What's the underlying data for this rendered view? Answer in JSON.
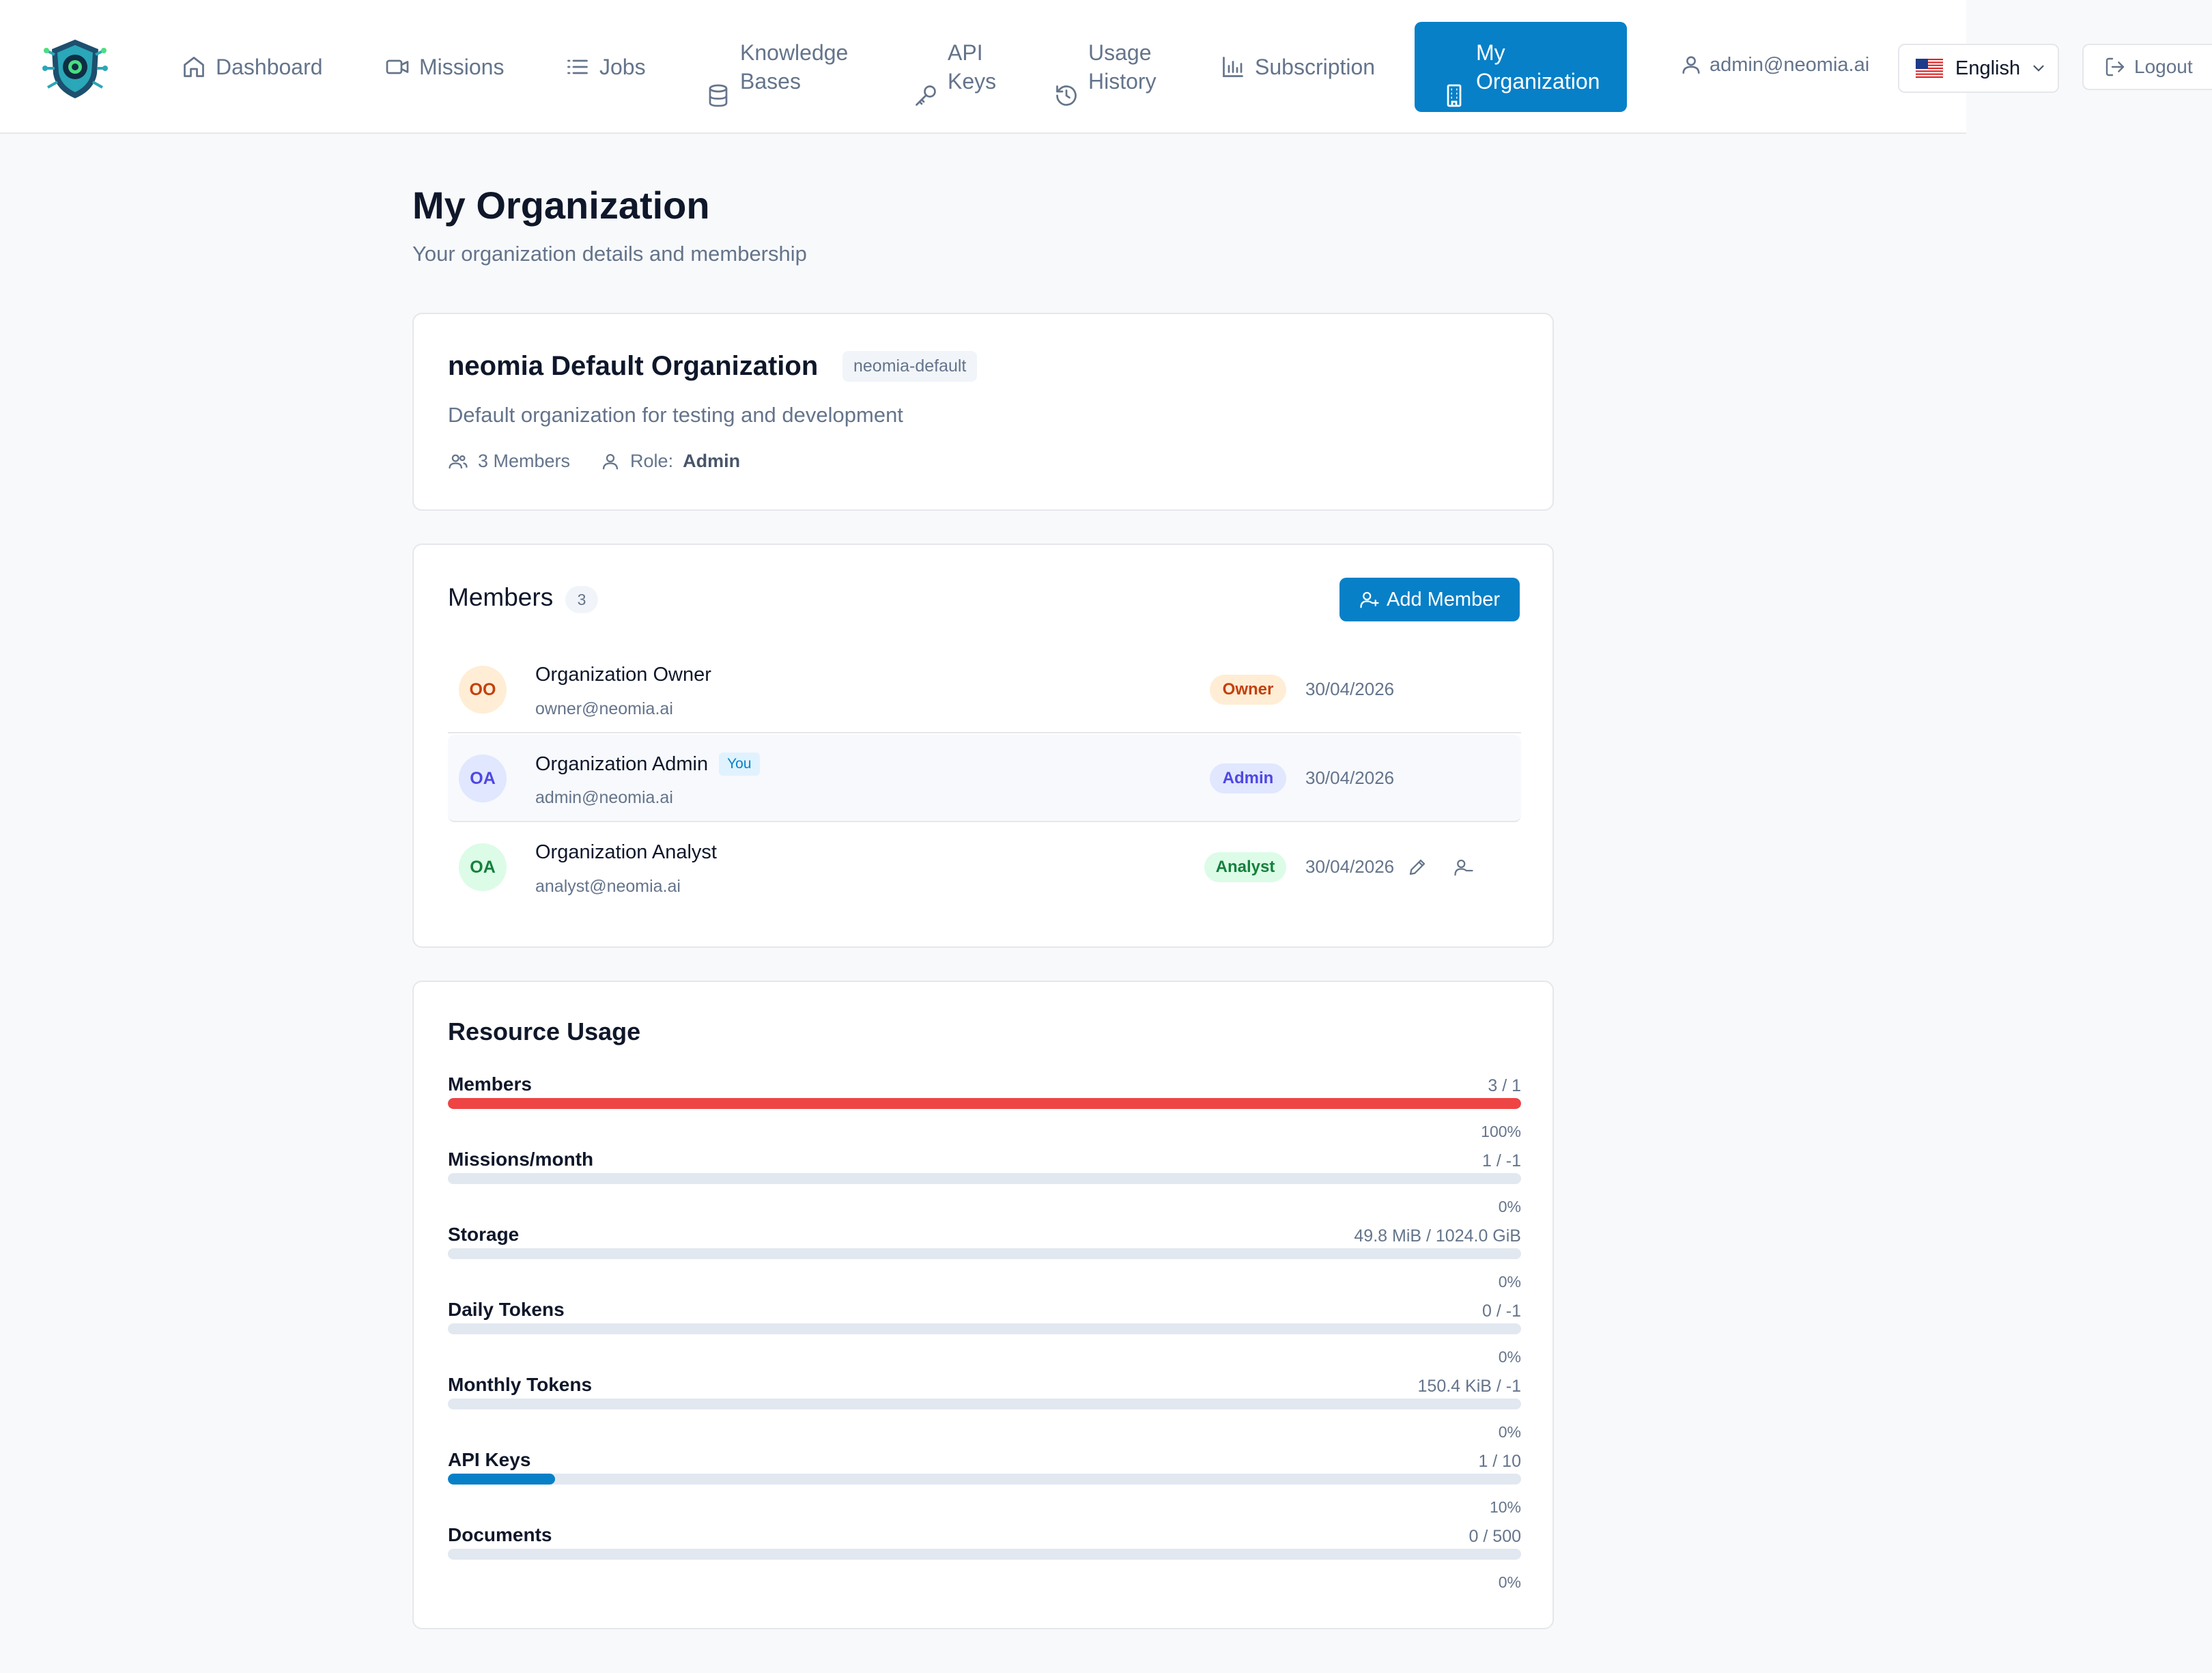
{
  "nav": {
    "items": [
      {
        "label": "Dashboard",
        "icon": "home-icon"
      },
      {
        "label": "Missions",
        "icon": "video-icon"
      },
      {
        "label": "Jobs",
        "icon": "list-icon"
      },
      {
        "label": "Knowledge\nBases",
        "icon": "database-icon"
      },
      {
        "label": "API\nKeys",
        "icon": "key-icon"
      },
      {
        "label": "Usage\nHistory",
        "icon": "history-icon"
      },
      {
        "label": "Subscription",
        "icon": "bar-chart-icon"
      },
      {
        "label": "My\nOrganization",
        "icon": "building-icon",
        "active": true
      }
    ],
    "user_email": "admin@neomia.ai",
    "language": "English",
    "logout": "Logout"
  },
  "page": {
    "title": "My Organization",
    "subtitle": "Your organization details and membership"
  },
  "org": {
    "name": "neomia Default Organization",
    "slug": "neomia-default",
    "description": "Default organization for testing and development",
    "members_text": "3 Members",
    "role_label": "Role:",
    "role_value": "Admin"
  },
  "members": {
    "title": "Members",
    "count": "3",
    "add_label": "Add Member",
    "you_label": "You",
    "rows": [
      {
        "initials": "OO",
        "name": "Organization Owner",
        "email": "owner@neomia.ai",
        "role": "Owner",
        "date": "30/04/2026",
        "color": "#c2410c",
        "bg": "#ffedd5"
      },
      {
        "initials": "OA",
        "name": "Organization Admin",
        "email": "admin@neomia.ai",
        "role": "Admin",
        "date": "30/04/2026",
        "color": "#4f46e5",
        "bg": "#e0e7ff"
      },
      {
        "initials": "OA",
        "name": "Organization Analyst",
        "email": "analyst@neomia.ai",
        "role": "Analyst",
        "date": "30/04/2026",
        "color": "#15803d",
        "bg": "#dcfce7"
      }
    ]
  },
  "usage": {
    "title": "Resource Usage",
    "rows": [
      {
        "label": "Members",
        "value": "3 / 1",
        "pct": "100%",
        "fraction": 1.0,
        "color": "#ef4444"
      },
      {
        "label": "Missions/month",
        "value": "1 / -1",
        "pct": "0%",
        "fraction": 0,
        "color": "#0780c8"
      },
      {
        "label": "Storage",
        "value": "49.8 MiB / 1024.0 GiB",
        "pct": "0%",
        "fraction": 0,
        "color": "#0780c8"
      },
      {
        "label": "Daily Tokens",
        "value": "0 / -1",
        "pct": "0%",
        "fraction": 0,
        "color": "#0780c8"
      },
      {
        "label": "Monthly Tokens",
        "value": "150.4 KiB / -1",
        "pct": "0%",
        "fraction": 0,
        "color": "#0780c8"
      },
      {
        "label": "API Keys",
        "value": "1 / 10",
        "pct": "10%",
        "fraction": 0.1,
        "color": "#0780c8"
      },
      {
        "label": "Documents",
        "value": "0 / 500",
        "pct": "0%",
        "fraction": 0,
        "color": "#0780c8"
      }
    ]
  },
  "colors": {
    "accent": "#0780c8",
    "danger": "#ef4444"
  }
}
